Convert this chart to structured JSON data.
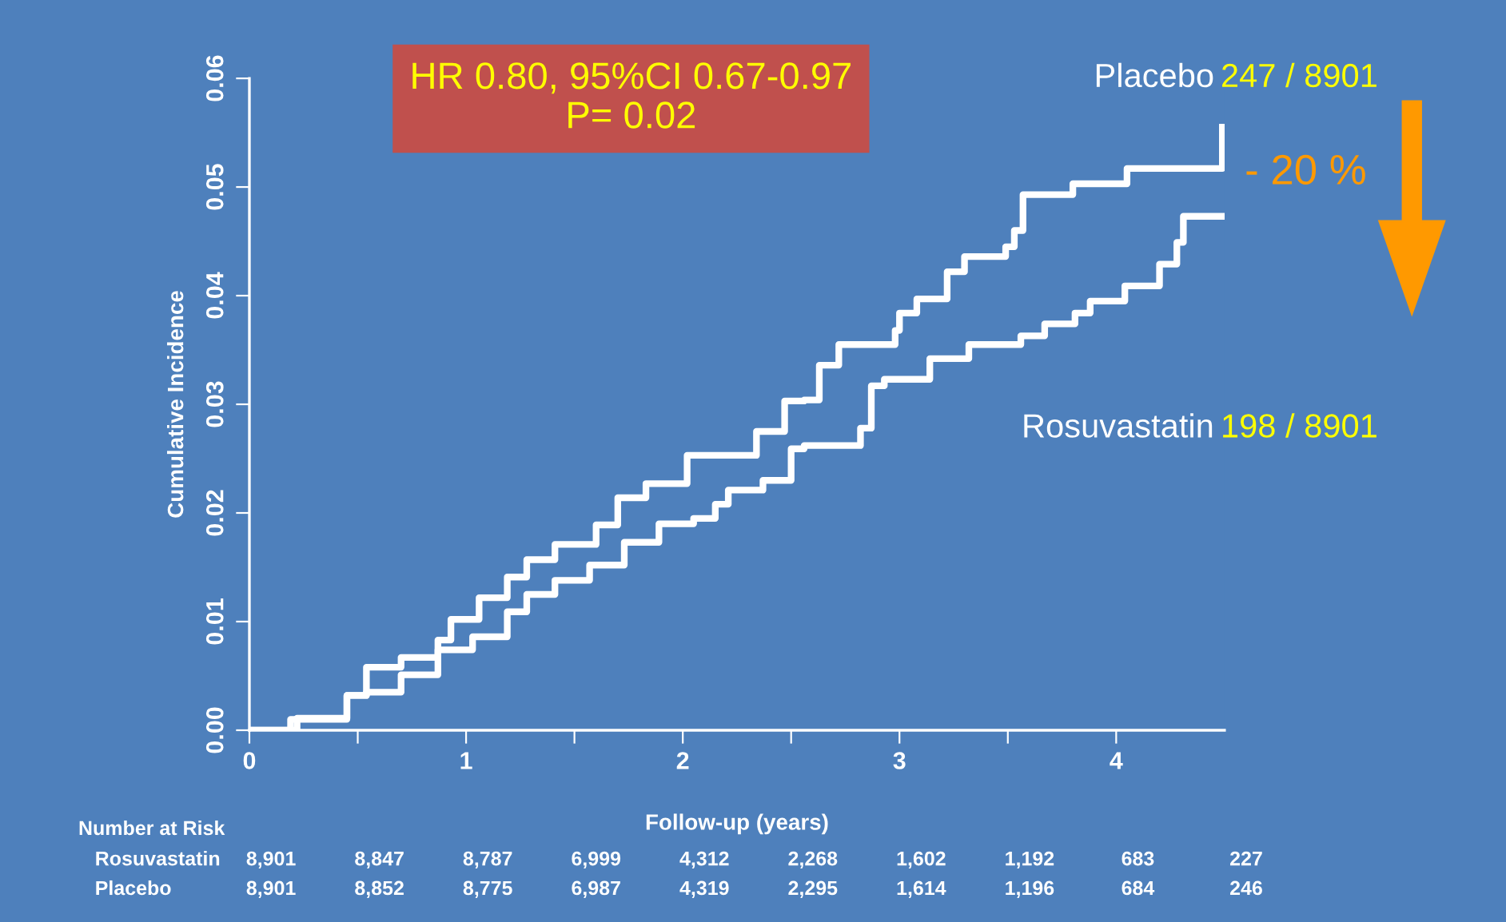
{
  "chart_data": {
    "type": "step",
    "xlabel": "Follow-up (years)",
    "ylabel": "Cumulative Incidence",
    "xlim": [
      0,
      4.5
    ],
    "ylim": [
      0,
      0.06
    ],
    "xticks": [
      0,
      {
        "value": 0.5,
        "label": null
      },
      1,
      {
        "value": 1.5,
        "label": null
      },
      2,
      {
        "value": 2.5,
        "label": null
      },
      3,
      {
        "value": 3.5,
        "label": null
      },
      4
    ],
    "yticks": [
      {
        "value": 0,
        "label": "0.00"
      },
      {
        "value": 0.01,
        "label": "0.01"
      },
      {
        "value": 0.02,
        "label": "0.02"
      },
      {
        "value": 0.03,
        "label": "0.03"
      },
      {
        "value": 0.04,
        "label": "0.04"
      },
      {
        "value": 0.05,
        "label": "0.05"
      },
      {
        "value": 0.06,
        "label": "0.06"
      }
    ],
    "grid": false,
    "legend": false,
    "marker": "none",
    "line_style": "solid",
    "series": [
      {
        "name": "Placebo",
        "color": "#ffffff",
        "x": [
          0,
          0.19,
          0.45,
          0.54,
          0.7,
          0.87,
          0.93,
          1.06,
          1.19,
          1.28,
          1.41,
          1.6,
          1.7,
          1.83,
          2.02,
          2.2,
          2.34,
          2.47,
          2.56,
          2.63,
          2.72,
          2.88,
          2.98,
          3.0,
          3.08,
          3.17,
          3.22,
          3.3,
          3.44,
          3.49,
          3.53,
          3.57,
          3.8,
          4.05,
          4.49
        ],
        "values": [
          0,
          0.001,
          0.0032,
          0.0058,
          0.0067,
          0.0083,
          0.0102,
          0.0122,
          0.0141,
          0.0157,
          0.0171,
          0.0189,
          0.0214,
          0.0227,
          0.0253,
          0.0253,
          0.0275,
          0.0303,
          0.0304,
          0.0336,
          0.0355,
          0.0355,
          0.0368,
          0.0384,
          0.0397,
          0.0397,
          0.0422,
          0.0436,
          0.0436,
          0.0445,
          0.046,
          0.0493,
          0.0503,
          0.0517,
          0.0555
        ]
      },
      {
        "name": "Rosuvastatin",
        "color": "#ffffff",
        "x": [
          0,
          0.22,
          0.45,
          0.54,
          0.7,
          0.87,
          1.03,
          1.19,
          1.28,
          1.41,
          1.57,
          1.73,
          1.89,
          2.05,
          2.15,
          2.21,
          2.37,
          2.5,
          2.56,
          2.76,
          2.82,
          2.87,
          2.93,
          3.04,
          3.14,
          3.32,
          3.54,
          3.56,
          3.67,
          3.81,
          3.88,
          4.04,
          4.2,
          4.28,
          4.31,
          4.49
        ],
        "values": [
          0,
          0.0011,
          0.0032,
          0.0035,
          0.0051,
          0.0074,
          0.0086,
          0.0109,
          0.0125,
          0.0138,
          0.0152,
          0.0173,
          0.019,
          0.0195,
          0.0208,
          0.0221,
          0.023,
          0.0259,
          0.0262,
          0.0262,
          0.0278,
          0.0317,
          0.0323,
          0.0323,
          0.0342,
          0.0355,
          0.0355,
          0.0363,
          0.0374,
          0.0384,
          0.0395,
          0.0409,
          0.0429,
          0.0449,
          0.0473,
          0.0473
        ]
      }
    ],
    "annotations": [
      "HR 0.80, 95%CI 0.67-0.97\nP= 0.02",
      "247 / 8901",
      "198 / 8901",
      "- 20 %",
      "Number at Risk",
      "Rosuvastatin",
      "8,901",
      "8,847",
      "8,787",
      "6,999",
      "4,312",
      "2,268",
      "1,602",
      "1,192",
      "683",
      "227",
      "Placebo",
      "8,901",
      "8,852",
      "8,775",
      "6,987",
      "4,319",
      "2,295",
      "1,614",
      "1,196",
      "684",
      "246"
    ]
  }
}
